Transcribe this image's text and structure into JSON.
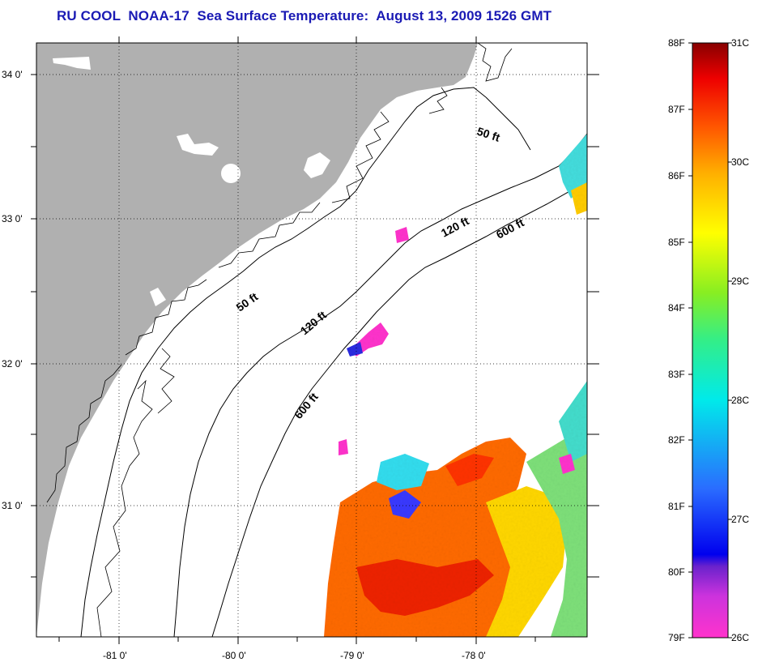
{
  "title": "RU COOL  NOAA-17  Sea Surface Temperature:  August 13, 2009 1526 GMT",
  "lat_labels": [
    "34 0'",
    "33 0'",
    "32 0'",
    "31 0'"
  ],
  "lon_labels": [
    "-81 0'",
    "-80 0'",
    "-79 0'",
    "-78 0'"
  ],
  "contours": {
    "label_50a": "50 ft",
    "label_50b": "50 ft",
    "label_120a": "120 ft",
    "label_120b": "120 ft",
    "label_600a": "600 ft",
    "label_600b": "600 ft"
  },
  "colorbar": {
    "fahrenheit": [
      "88F",
      "87F",
      "86F",
      "85F",
      "84F",
      "83F",
      "82F",
      "81F",
      "80F",
      "79F"
    ],
    "celsius": [
      "31C",
      "30C",
      "29C",
      "28C",
      "27C",
      "26C"
    ]
  },
  "colors": {
    "land": "#b0b0b0",
    "title": "#1a1ab4"
  }
}
